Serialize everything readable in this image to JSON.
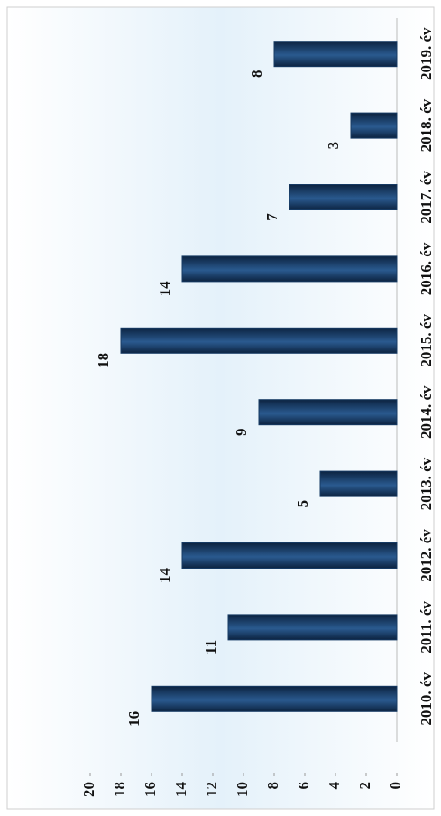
{
  "chart_data": {
    "type": "bar",
    "categories": [
      "2010. év",
      "2011. év",
      "2012. év",
      "2013. év",
      "2014. év",
      "2015. év",
      "2016. év",
      "2017. év",
      "2018. év",
      "2019. év"
    ],
    "values": [
      16,
      11,
      14,
      5,
      9,
      18,
      14,
      7,
      3,
      8
    ],
    "color": "#163a63",
    "ylim": [
      0,
      20
    ],
    "yticks": [
      0,
      2,
      4,
      6,
      8,
      10,
      12,
      14,
      16,
      18,
      20
    ],
    "grid": false
  }
}
